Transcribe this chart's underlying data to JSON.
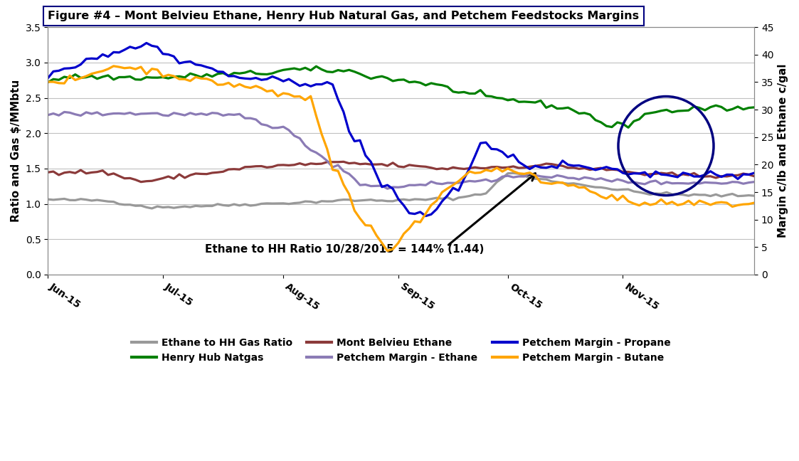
{
  "title": "Figure #4 – Mont Belvieu Ethane, Henry Hub Natural Gas, and Petchem Feedstocks Margins",
  "ylabel_left": "Ratio and Gas $/MMbtu",
  "ylabel_right": "Margin c/lb and Ethane c/gal",
  "ylim_left": [
    0.0,
    3.5
  ],
  "ylim_right": [
    0,
    45
  ],
  "yticks_left": [
    0.0,
    0.5,
    1.0,
    1.5,
    2.0,
    2.5,
    3.0,
    3.5
  ],
  "yticks_right": [
    0,
    5,
    10,
    15,
    20,
    25,
    30,
    35,
    40,
    45
  ],
  "annotation_text": "Ethane to HH Ratio 10/28/2015 = 144% (1.44)",
  "background_color": "#ffffff",
  "grid_color": "#c0c0c0",
  "colors": {
    "ethane_ratio": "#999999",
    "henry_hub": "#008000",
    "mont_belvieu": "#8B3A3A",
    "petchem_ethane": "#8B7BB5",
    "petchem_propane": "#0000CC",
    "petchem_butane": "#FFA500"
  },
  "legend_labels": [
    "Ethane to HH Gas Ratio",
    "Henry Hub Natgas",
    "Mont Belvieu Ethane",
    "Petchem Margin - Ethane",
    "Petchem Margin - Propane",
    "Petchem Margin - Butane"
  ],
  "n_points": 130,
  "x_ticks": [
    "Jun-15",
    "Jul-15",
    "Aug-15",
    "Sep-15",
    "Oct-15",
    "Nov-15"
  ],
  "x_tick_positions": [
    0,
    21,
    43,
    64,
    84,
    105
  ]
}
